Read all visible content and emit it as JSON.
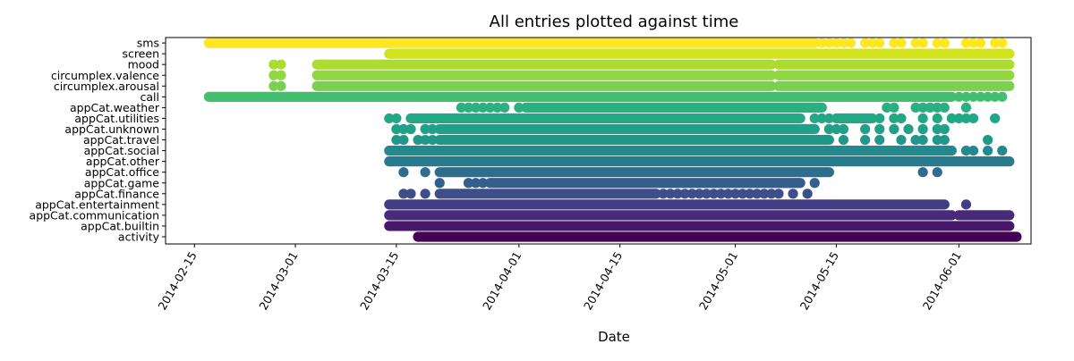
{
  "chart_data": {
    "type": "scatter",
    "title": "All entries plotted against time",
    "xlabel": "Date",
    "ylabel": "",
    "x_type": "date",
    "xlim": [
      "2014-02-11",
      "2014-06-11"
    ],
    "x_ticks": [
      "2014-02-15",
      "2014-03-01",
      "2014-03-15",
      "2014-04-01",
      "2014-04-15",
      "2014-05-01",
      "2014-05-15",
      "2014-06-01"
    ],
    "grid": false,
    "legend": "none",
    "categories": [
      "activity",
      "appCat.builtin",
      "appCat.communication",
      "appCat.entertainment",
      "appCat.finance",
      "appCat.game",
      "appCat.office",
      "appCat.other",
      "appCat.social",
      "appCat.travel",
      "appCat.unknown",
      "appCat.utilities",
      "appCat.weather",
      "call",
      "circumplex.arousal",
      "circumplex.valence",
      "mood",
      "screen",
      "sms"
    ],
    "series": [
      {
        "category": "activity",
        "color": "#440154",
        "ranges": [
          [
            "2014-03-18",
            "2014-06-09"
          ]
        ],
        "points": []
      },
      {
        "category": "appCat.builtin",
        "color": "#481769",
        "ranges": [
          [
            "2014-03-14",
            "2014-06-08"
          ]
        ],
        "points": []
      },
      {
        "category": "appCat.communication",
        "color": "#472a7a",
        "ranges": [
          [
            "2014-03-14",
            "2014-05-31"
          ],
          [
            "2014-06-01",
            "2014-06-08"
          ]
        ],
        "points": []
      },
      {
        "category": "appCat.entertainment",
        "color": "#433d84",
        "ranges": [
          [
            "2014-03-14",
            "2014-05-30"
          ]
        ],
        "points": [
          "2014-06-02"
        ]
      },
      {
        "category": "appCat.finance",
        "color": "#3d4e8a",
        "ranges": [
          [
            "2014-03-21",
            "2014-04-20"
          ]
        ],
        "points": [
          "2014-03-16",
          "2014-03-17",
          "2014-03-19",
          "2014-04-21",
          "2014-04-22",
          "2014-04-23",
          "2014-04-24",
          "2014-04-25",
          "2014-04-26",
          "2014-04-27",
          "2014-04-28",
          "2014-04-29",
          "2014-04-30",
          "2014-05-01",
          "2014-05-02",
          "2014-05-03",
          "2014-05-04",
          "2014-05-05",
          "2014-05-06",
          "2014-05-07",
          "2014-05-09",
          "2014-05-11"
        ]
      },
      {
        "category": "appCat.game",
        "color": "#355e8d",
        "ranges": [
          [
            "2014-03-28",
            "2014-05-10"
          ]
        ],
        "points": [
          "2014-03-21",
          "2014-03-25",
          "2014-03-26",
          "2014-03-27",
          "2014-05-12"
        ]
      },
      {
        "category": "appCat.office",
        "color": "#2e6d8e",
        "ranges": [
          [
            "2014-03-21",
            "2014-05-14"
          ]
        ],
        "points": [
          "2014-03-16",
          "2014-03-19",
          "2014-05-27",
          "2014-05-29"
        ]
      },
      {
        "category": "appCat.other",
        "color": "#297b8e",
        "ranges": [
          [
            "2014-03-14",
            "2014-06-08"
          ]
        ],
        "points": []
      },
      {
        "category": "appCat.social",
        "color": "#23898e",
        "ranges": [
          [
            "2014-03-14",
            "2014-05-31"
          ]
        ],
        "points": [
          "2014-06-02",
          "2014-06-03",
          "2014-06-05",
          "2014-06-07"
        ]
      },
      {
        "category": "appCat.travel",
        "color": "#1f988b",
        "ranges": [
          [
            "2014-03-21",
            "2014-05-14"
          ]
        ],
        "points": [
          "2014-03-15",
          "2014-03-16",
          "2014-03-18",
          "2014-03-19",
          "2014-03-20",
          "2014-05-16",
          "2014-05-19",
          "2014-05-21",
          "2014-05-24",
          "2014-05-26",
          "2014-05-27",
          "2014-05-29",
          "2014-05-30",
          "2014-06-05"
        ]
      },
      {
        "category": "appCat.unknown",
        "color": "#1fa188",
        "ranges": [
          [
            "2014-03-21",
            "2014-05-12"
          ]
        ],
        "points": [
          "2014-03-15",
          "2014-03-16",
          "2014-03-17",
          "2014-03-19",
          "2014-03-20",
          "2014-05-14",
          "2014-05-15",
          "2014-05-16",
          "2014-05-19",
          "2014-05-21",
          "2014-05-23",
          "2014-05-25",
          "2014-05-27",
          "2014-05-29",
          "2014-05-30"
        ]
      },
      {
        "category": "appCat.utilities",
        "color": "#22a884",
        "ranges": [
          [
            "2014-03-17",
            "2014-05-10"
          ],
          [
            "2014-05-15",
            "2014-05-20"
          ]
        ],
        "points": [
          "2014-03-14",
          "2014-03-15",
          "2014-05-12",
          "2014-05-13",
          "2014-05-14",
          "2014-05-21",
          "2014-05-23",
          "2014-05-24",
          "2014-05-27",
          "2014-05-29",
          "2014-05-31",
          "2014-06-01",
          "2014-06-02",
          "2014-06-03",
          "2014-06-06"
        ]
      },
      {
        "category": "appCat.weather",
        "color": "#2ab07f",
        "ranges": [
          [
            "2014-04-02",
            "2014-05-13"
          ]
        ],
        "points": [
          "2014-03-24",
          "2014-03-25",
          "2014-03-26",
          "2014-03-27",
          "2014-03-28",
          "2014-03-29",
          "2014-03-30",
          "2014-04-01",
          "2014-05-22",
          "2014-05-23",
          "2014-05-26",
          "2014-05-27",
          "2014-05-28",
          "2014-05-29",
          "2014-05-30",
          "2014-06-02"
        ]
      },
      {
        "category": "call",
        "color": "#44bf70",
        "ranges": [
          [
            "2014-02-17",
            "2014-05-31"
          ]
        ],
        "points": [
          "2014-06-01",
          "2014-06-02",
          "2014-06-03",
          "2014-06-04",
          "2014-06-05",
          "2014-06-06",
          "2014-06-07"
        ]
      },
      {
        "category": "circumplex.arousal",
        "color": "#7ad151",
        "ranges": [
          [
            "2014-03-04",
            "2014-05-06"
          ],
          [
            "2014-05-07",
            "2014-06-08"
          ]
        ],
        "points": [
          "2014-02-26",
          "2014-02-27"
        ]
      },
      {
        "category": "circumplex.valence",
        "color": "#91d742",
        "ranges": [
          [
            "2014-03-04",
            "2014-05-06"
          ],
          [
            "2014-05-07",
            "2014-06-08"
          ]
        ],
        "points": [
          "2014-02-26",
          "2014-02-27"
        ]
      },
      {
        "category": "mood",
        "color": "#addc30",
        "ranges": [
          [
            "2014-03-04",
            "2014-05-06"
          ],
          [
            "2014-05-07",
            "2014-06-08"
          ]
        ],
        "points": [
          "2014-02-26",
          "2014-02-27"
        ]
      },
      {
        "category": "screen",
        "color": "#d2e21b",
        "ranges": [
          [
            "2014-03-14",
            "2014-06-08"
          ]
        ],
        "points": []
      },
      {
        "category": "sms",
        "color": "#fde725",
        "ranges": [
          [
            "2014-02-17",
            "2014-05-12"
          ]
        ],
        "points": [
          "2014-05-13",
          "2014-05-14",
          "2014-05-15",
          "2014-05-16",
          "2014-05-17",
          "2014-05-19",
          "2014-05-20",
          "2014-05-21",
          "2014-05-23",
          "2014-05-24",
          "2014-05-26",
          "2014-05-27",
          "2014-05-29",
          "2014-05-30",
          "2014-06-02",
          "2014-06-03",
          "2014-06-04",
          "2014-06-06",
          "2014-06-07"
        ]
      }
    ]
  }
}
